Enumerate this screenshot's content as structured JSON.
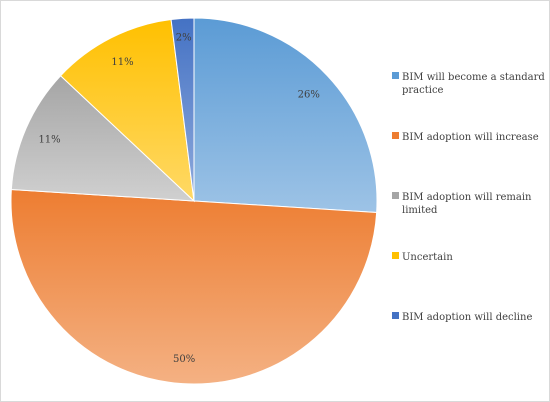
{
  "chart_data": {
    "type": "pie",
    "title": "",
    "series": [
      {
        "name": "BIM will become a standard practice",
        "value": 26,
        "label": "26%",
        "color": "#5b9bd5",
        "color_light": "#9dc3e6"
      },
      {
        "name": "BIM adoption will increase",
        "value": 50,
        "label": "50%",
        "color": "#ed7d31",
        "color_light": "#f4b183"
      },
      {
        "name": "BIM adoption will remain limited",
        "value": 11,
        "label": "11%",
        "color": "#a5a5a5",
        "color_light": "#d0d0d0"
      },
      {
        "name": "Uncertain",
        "value": 11,
        "label": "11%",
        "color": "#ffc000",
        "color_light": "#ffd966"
      },
      {
        "name": "BIM adoption will decline",
        "value": 2,
        "label": "2%",
        "color": "#4472c4",
        "color_light": "#8faadc"
      }
    ],
    "legend": {
      "position": "right",
      "items": [
        {
          "lines": [
            "BIM will become a standard",
            "practice"
          ],
          "color": "#5b9bd5"
        },
        {
          "lines": [
            "BIM adoption will increase"
          ],
          "color": "#ed7d31"
        },
        {
          "lines": [
            "BIM adoption will remain",
            "limited"
          ],
          "color": "#a5a5a5"
        },
        {
          "lines": [
            "Uncertain"
          ],
          "color": "#ffc000"
        },
        {
          "lines": [
            "BIM adoption will decline"
          ],
          "color": "#4472c4"
        }
      ]
    },
    "start_angle_deg": 0,
    "direction": "clockwise"
  }
}
